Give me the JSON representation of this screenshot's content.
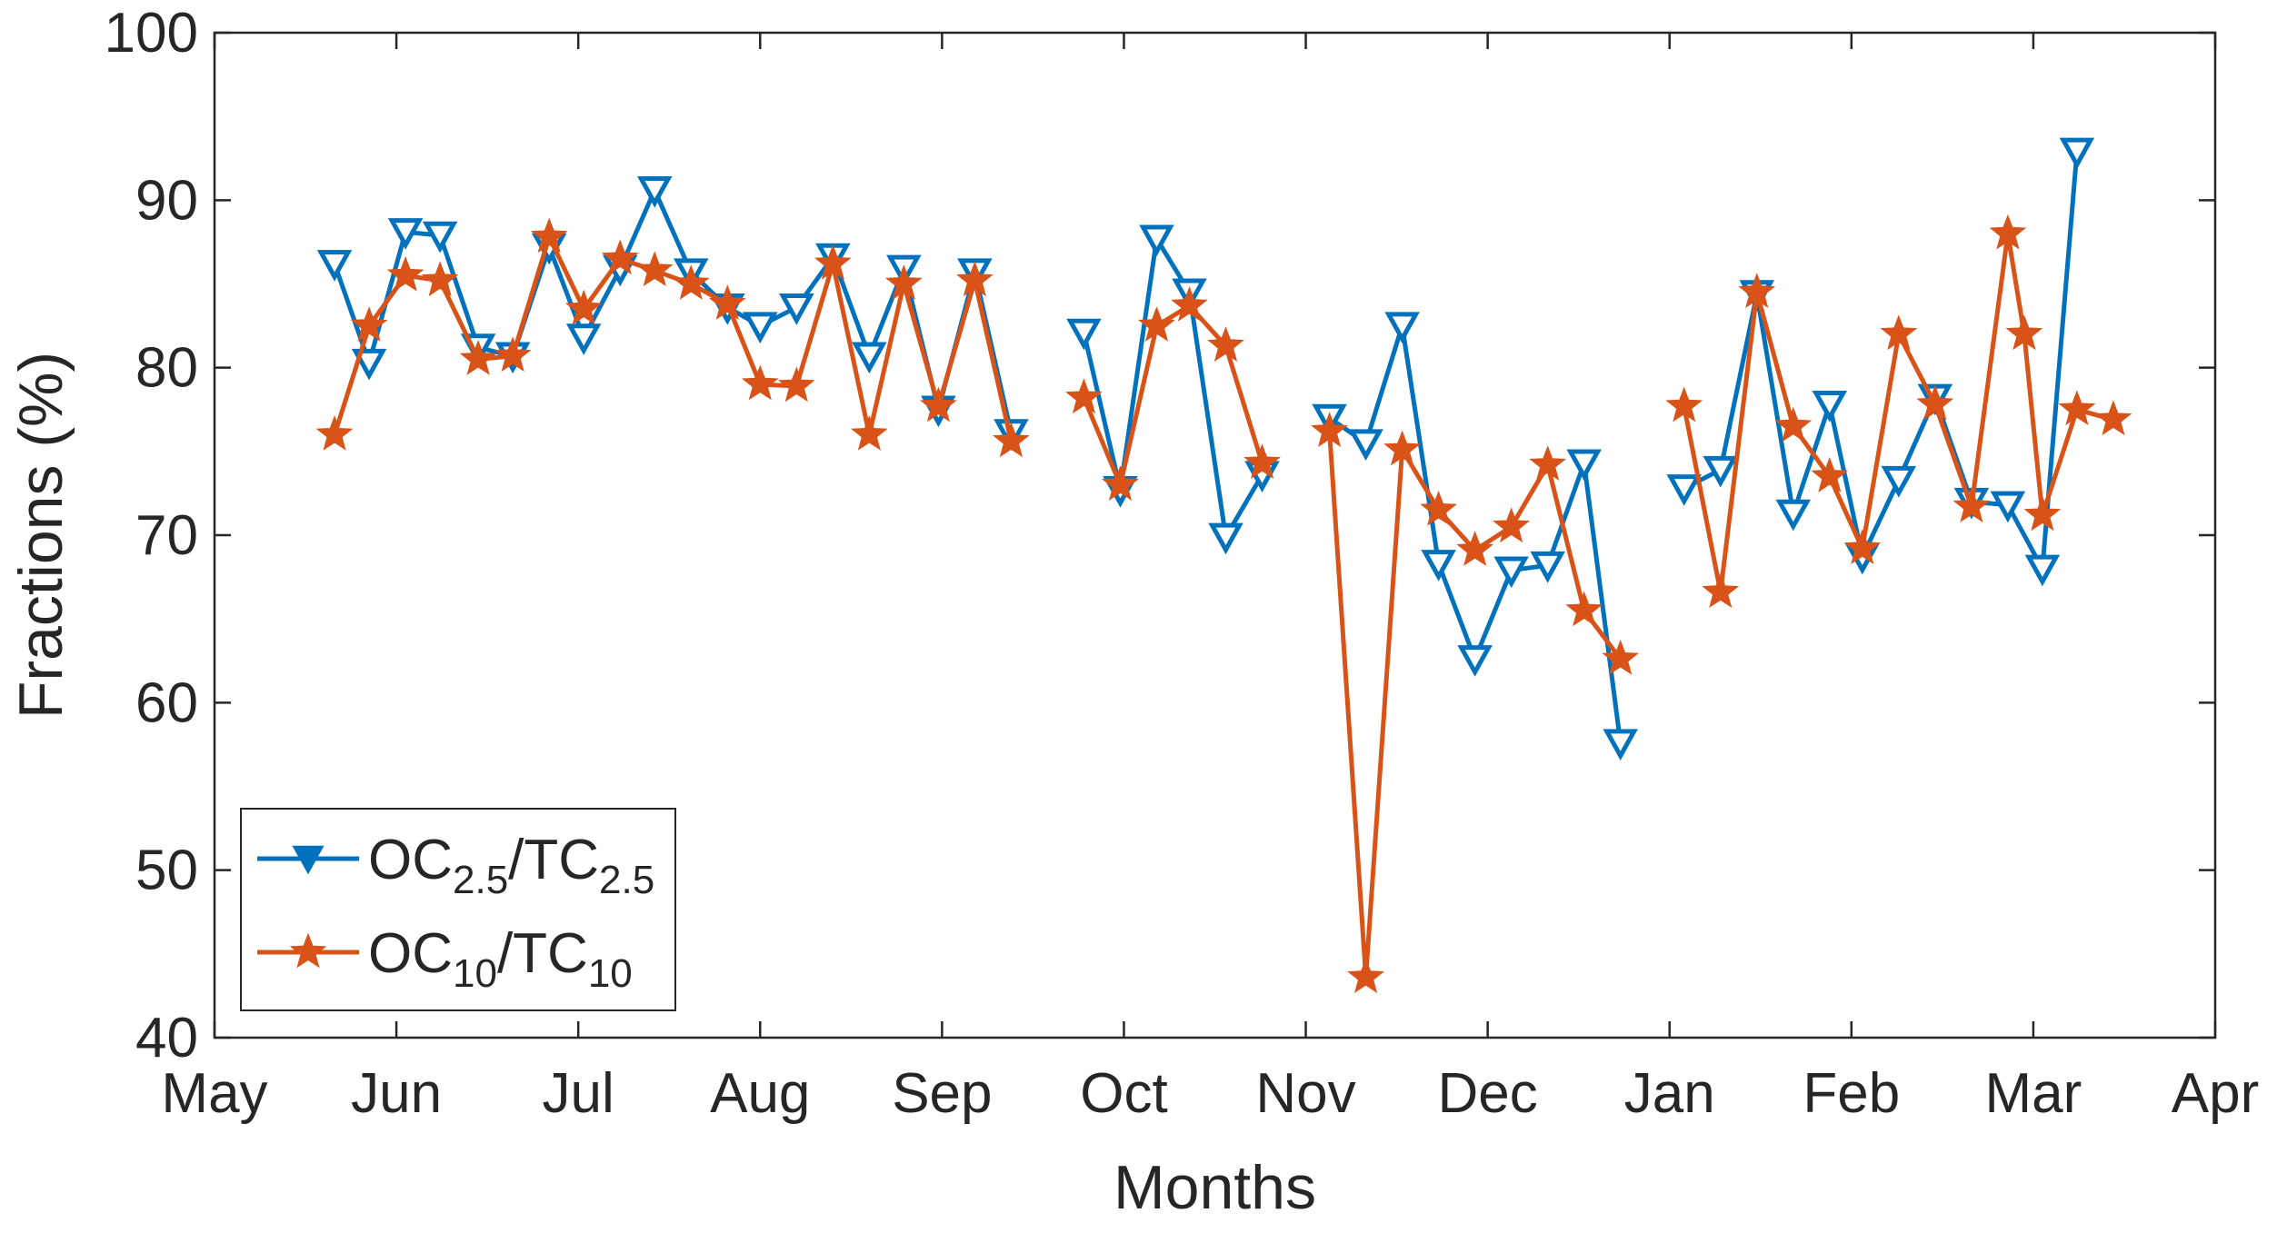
{
  "chart_data": {
    "type": "line",
    "title": "",
    "xlabel": "Months",
    "ylabel": "Fractions (%)",
    "ylim": [
      40,
      100
    ],
    "xlim": [
      0,
      11
    ],
    "yticks": [
      40,
      50,
      60,
      70,
      80,
      90,
      100
    ],
    "xticks": [
      {
        "label": "May",
        "value": 0
      },
      {
        "label": "Jun",
        "value": 1
      },
      {
        "label": "Jul",
        "value": 2
      },
      {
        "label": "Aug",
        "value": 3
      },
      {
        "label": "Sep",
        "value": 4
      },
      {
        "label": "Oct",
        "value": 5
      },
      {
        "label": "Nov",
        "value": 6
      },
      {
        "label": "Dec",
        "value": 7
      },
      {
        "label": "Jan",
        "value": 8
      },
      {
        "label": "Feb",
        "value": 9
      },
      {
        "label": "Mar",
        "value": 10
      },
      {
        "label": "Apr",
        "value": 11
      }
    ],
    "grid": false,
    "legend_position": "bottom-left",
    "series": [
      {
        "name": "OC2.5/TC2.5",
        "legend": {
          "a": "OC",
          "a_sub": "2.5",
          "b": "/TC",
          "b_sub": "2.5"
        },
        "color": "#0072BD",
        "marker": "triangle-down",
        "segments": [
          [
            [
              0.66,
              86.2
            ],
            [
              0.85,
              80.3
            ],
            [
              1.05,
              88.1
            ],
            [
              1.24,
              87.9
            ],
            [
              1.45,
              81.2
            ],
            [
              1.64,
              80.7
            ],
            [
              1.84,
              87.2
            ],
            [
              2.03,
              81.8
            ],
            [
              2.23,
              85.9
            ],
            [
              2.42,
              90.6
            ],
            [
              2.62,
              85.7
            ],
            [
              2.82,
              83.6
            ],
            [
              3.0,
              82.5
            ],
            [
              3.2,
              83.6
            ],
            [
              3.4,
              86.6
            ],
            [
              3.6,
              80.7
            ],
            [
              3.79,
              85.9
            ],
            [
              3.98,
              77.5
            ],
            [
              4.18,
              85.7
            ],
            [
              4.38,
              76.1
            ]
          ],
          [
            [
              4.78,
              82.1
            ],
            [
              4.98,
              72.7
            ],
            [
              5.18,
              87.7
            ],
            [
              5.36,
              84.5
            ],
            [
              5.56,
              69.9
            ],
            [
              5.76,
              73.6
            ]
          ],
          [
            [
              6.13,
              77.0
            ],
            [
              6.33,
              75.5
            ],
            [
              6.53,
              82.5
            ],
            [
              6.73,
              68.3
            ],
            [
              6.93,
              62.6
            ],
            [
              7.13,
              67.9
            ],
            [
              7.33,
              68.2
            ],
            [
              7.53,
              74.3
            ],
            [
              7.73,
              57.6
            ]
          ],
          [
            [
              8.08,
              72.8
            ],
            [
              8.28,
              73.9
            ],
            [
              8.48,
              84.4
            ],
            [
              8.68,
              71.3
            ],
            [
              8.88,
              77.8
            ],
            [
              9.06,
              68.7
            ],
            [
              9.26,
              73.3
            ],
            [
              9.46,
              78.2
            ],
            [
              9.66,
              72.0
            ],
            [
              9.86,
              71.8
            ],
            [
              10.05,
              68.0
            ],
            [
              10.24,
              92.9
            ]
          ]
        ]
      },
      {
        "name": "OC10/TC10",
        "legend": {
          "a": "OC",
          "a_sub": "10",
          "b": "/TC",
          "b_sub": "10"
        },
        "color": "#D95319",
        "marker": "star",
        "segments": [
          [
            [
              0.66,
              76.0
            ],
            [
              0.85,
              82.5
            ],
            [
              1.05,
              85.5
            ],
            [
              1.24,
              85.2
            ],
            [
              1.45,
              80.5
            ],
            [
              1.64,
              80.7
            ],
            [
              1.84,
              87.8
            ],
            [
              2.03,
              83.5
            ],
            [
              2.23,
              86.5
            ],
            [
              2.42,
              85.8
            ],
            [
              2.62,
              85.0
            ],
            [
              2.82,
              83.8
            ],
            [
              3.0,
              79.0
            ],
            [
              3.2,
              78.9
            ],
            [
              3.4,
              86.2
            ],
            [
              3.6,
              76.0
            ],
            [
              3.79,
              85.0
            ],
            [
              3.98,
              77.7
            ],
            [
              4.18,
              85.2
            ],
            [
              4.38,
              75.6
            ]
          ],
          [
            [
              4.78,
              78.2
            ],
            [
              4.98,
              73.0
            ],
            [
              5.18,
              82.5
            ],
            [
              5.36,
              83.7
            ],
            [
              5.56,
              81.3
            ],
            [
              5.76,
              74.3
            ]
          ],
          [
            [
              6.13,
              76.2
            ],
            [
              6.33,
              43.6
            ],
            [
              6.53,
              75.1
            ],
            [
              6.73,
              71.5
            ],
            [
              6.93,
              69.1
            ],
            [
              7.13,
              70.5
            ],
            [
              7.33,
              74.2
            ],
            [
              7.53,
              65.5
            ],
            [
              7.73,
              62.6
            ]
          ],
          [
            [
              8.08,
              77.7
            ],
            [
              8.28,
              66.6
            ],
            [
              8.48,
              84.5
            ],
            [
              8.68,
              76.5
            ],
            [
              8.88,
              73.5
            ],
            [
              9.06,
              69.2
            ],
            [
              9.26,
              82.0
            ],
            [
              9.46,
              77.8
            ],
            [
              9.66,
              71.7
            ],
            [
              9.86,
              88.0
            ],
            [
              9.95,
              82.0
            ],
            [
              10.05,
              71.2
            ],
            [
              10.24,
              77.5
            ],
            [
              10.44,
              76.9
            ]
          ]
        ]
      }
    ]
  }
}
